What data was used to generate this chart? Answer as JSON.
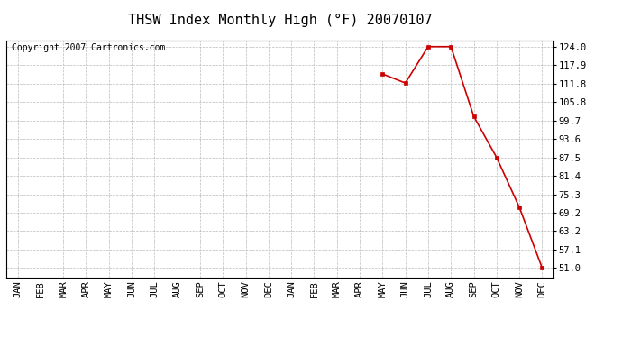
{
  "title": "THSW Index Monthly High (°F) 20070107",
  "copyright_text": "Copyright 2007 Cartronics.com",
  "months": [
    "JAN",
    "FEB",
    "MAR",
    "APR",
    "MAY",
    "JUN",
    "JUL",
    "AUG",
    "SEP",
    "OCT",
    "NOV",
    "DEC",
    "JAN",
    "FEB",
    "MAR",
    "APR",
    "MAY",
    "JUN",
    "JUL",
    "AUG",
    "SEP",
    "OCT",
    "NOV",
    "DEC"
  ],
  "data_indices": [
    16,
    17,
    18,
    19,
    20,
    21,
    22,
    23
  ],
  "data_values": [
    115.0,
    112.0,
    124.0,
    124.0,
    101.0,
    87.5,
    71.0,
    51.0
  ],
  "yticks": [
    51.0,
    57.1,
    63.2,
    69.2,
    75.3,
    81.4,
    87.5,
    93.6,
    99.7,
    105.8,
    111.8,
    117.9,
    124.0
  ],
  "ymin": 48.0,
  "ymax": 126.0,
  "line_color": "#cc0000",
  "marker_color": "#cc0000",
  "background_color": "#ffffff",
  "grid_color": "#aaaaaa",
  "title_fontsize": 11,
  "copyright_fontsize": 7,
  "tick_fontsize": 7.5
}
